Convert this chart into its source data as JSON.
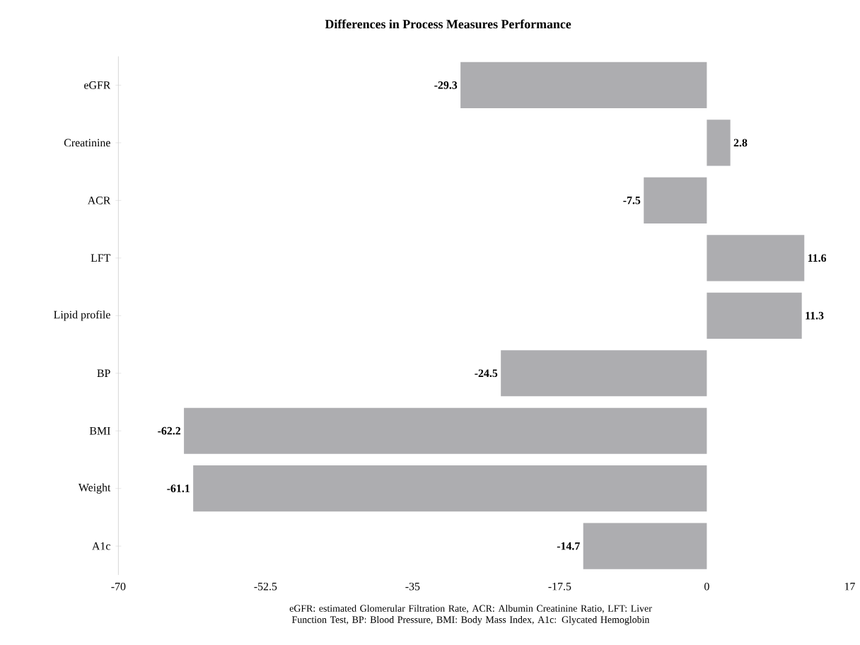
{
  "chart_data": {
    "type": "bar",
    "orientation": "horizontal",
    "title": "Differences in Process Measures Performance",
    "categories": [
      "eGFR",
      "Creatinine",
      "ACR",
      "LFT",
      "Lipid profile",
      "BP",
      "BMI",
      "Weight",
      "A1c"
    ],
    "values": [
      -29.3,
      2.8,
      -7.5,
      11.6,
      11.3,
      -24.5,
      -62.2,
      -61.1,
      -14.7
    ],
    "color": "#adadb0",
    "data_labels": true,
    "grid": false,
    "xlim": [
      -70,
      17
    ],
    "xticks": [
      -70,
      -52.5,
      -35,
      -17.5,
      0,
      17
    ],
    "annotations": [
      "eGFR: estimated Glomerular Filtration Rate, ACR: Albumin Creatinine Ratio, LFT: Liver Function Test, BP: Blood Pressure, BMI: Body Mass Index, A1c: Glycated Hemoglobin"
    ]
  }
}
